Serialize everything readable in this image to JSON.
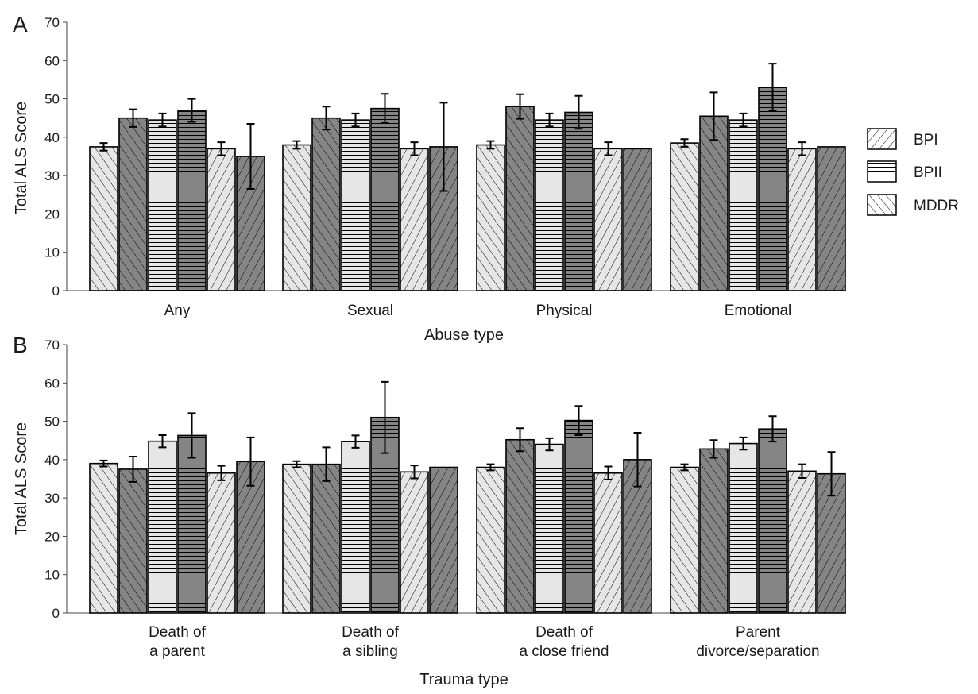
{
  "legend": [
    {
      "label": "BPI",
      "pattern": "pat-bpi"
    },
    {
      "label": "BPII",
      "pattern": "pat-bpii"
    },
    {
      "label": "MDDR",
      "pattern": "pat-mddr"
    }
  ],
  "colors": {
    "light": "#e6e6e6",
    "dark": "#858585",
    "stroke": "#000000"
  },
  "chart_data": [
    {
      "type": "bar",
      "panel_label": "A",
      "xlabel": "Abuse type",
      "ylabel": "Total ALS Score",
      "ylim": [
        0,
        70
      ],
      "yticks": [
        "0",
        "10",
        "20",
        "30",
        "40",
        "50",
        "60",
        "70"
      ],
      "legend_position": "right",
      "categories": [
        [
          "Any"
        ],
        [
          "Sexual"
        ],
        [
          "Physical"
        ],
        [
          "Emotional"
        ]
      ],
      "bars_per_category": [
        [
          {
            "group": "BPI",
            "shade": "light",
            "value": 37.5,
            "err": 1
          },
          {
            "group": "BPI",
            "shade": "dark",
            "value": 45,
            "err": 2.3
          },
          {
            "group": "BPII",
            "shade": "light",
            "value": 44.5,
            "err": 1.7
          },
          {
            "group": "BPII",
            "shade": "dark",
            "value": 47,
            "err": 3
          },
          {
            "group": "MDDR",
            "shade": "light",
            "value": 37,
            "err": 1.7
          },
          {
            "group": "MDDR",
            "shade": "dark",
            "value": 35,
            "err": 8.5
          }
        ],
        [
          {
            "group": "BPI",
            "shade": "light",
            "value": 38,
            "err": 1
          },
          {
            "group": "BPI",
            "shade": "dark",
            "value": 45,
            "err": 3
          },
          {
            "group": "BPII",
            "shade": "light",
            "value": 44.5,
            "err": 1.7
          },
          {
            "group": "BPII",
            "shade": "dark",
            "value": 47.5,
            "err": 3.8
          },
          {
            "group": "MDDR",
            "shade": "light",
            "value": 37,
            "err": 1.7
          },
          {
            "group": "MDDR",
            "shade": "dark",
            "value": 37.5,
            "err": 11.5
          }
        ],
        [
          {
            "group": "BPI",
            "shade": "light",
            "value": 38,
            "err": 1
          },
          {
            "group": "BPI",
            "shade": "dark",
            "value": 48,
            "err": 3.2
          },
          {
            "group": "BPII",
            "shade": "light",
            "value": 44.5,
            "err": 1.7
          },
          {
            "group": "BPII",
            "shade": "dark",
            "value": 46.5,
            "err": 4.3
          },
          {
            "group": "MDDR",
            "shade": "light",
            "value": 37,
            "err": 1.7
          },
          {
            "group": "MDDR",
            "shade": "dark",
            "value": 37,
            "err": 0
          }
        ],
        [
          {
            "group": "BPI",
            "shade": "light",
            "value": 38.5,
            "err": 1
          },
          {
            "group": "BPI",
            "shade": "dark",
            "value": 45.5,
            "err": 6.2
          },
          {
            "group": "BPII",
            "shade": "light",
            "value": 44.5,
            "err": 1.7
          },
          {
            "group": "BPII",
            "shade": "dark",
            "value": 53,
            "err": 6.2
          },
          {
            "group": "MDDR",
            "shade": "light",
            "value": 37,
            "err": 1.7
          },
          {
            "group": "MDDR",
            "shade": "dark",
            "value": 37.5,
            "err": 0
          }
        ]
      ]
    },
    {
      "type": "bar",
      "panel_label": "B",
      "xlabel": "Trauma type",
      "ylabel": "Total ALS Score",
      "ylim": [
        0,
        70
      ],
      "yticks": [
        "0",
        "10",
        "20",
        "30",
        "40",
        "50",
        "60",
        "70"
      ],
      "categories": [
        [
          "Death of",
          "a parent"
        ],
        [
          "Death of",
          "a sibling"
        ],
        [
          "Death of",
          "a close friend"
        ],
        [
          "Parent",
          "divorce/separation"
        ]
      ],
      "bars_per_category": [
        [
          {
            "group": "BPI",
            "shade": "light",
            "value": 39,
            "err": 0.8
          },
          {
            "group": "BPI",
            "shade": "dark",
            "value": 37.5,
            "err": 3.3
          },
          {
            "group": "BPII",
            "shade": "light",
            "value": 44.8,
            "err": 1.6
          },
          {
            "group": "BPII",
            "shade": "dark",
            "value": 46.3,
            "err": 5.8
          },
          {
            "group": "MDDR",
            "shade": "light",
            "value": 36.5,
            "err": 1.9
          },
          {
            "group": "MDDR",
            "shade": "dark",
            "value": 39.5,
            "err": 6.3
          }
        ],
        [
          {
            "group": "BPI",
            "shade": "light",
            "value": 38.8,
            "err": 0.8
          },
          {
            "group": "BPI",
            "shade": "dark",
            "value": 38.8,
            "err": 4.4
          },
          {
            "group": "BPII",
            "shade": "light",
            "value": 44.7,
            "err": 1.6
          },
          {
            "group": "BPII",
            "shade": "dark",
            "value": 51,
            "err": 9.3
          },
          {
            "group": "MDDR",
            "shade": "light",
            "value": 36.8,
            "err": 1.7
          },
          {
            "group": "MDDR",
            "shade": "dark",
            "value": 38,
            "err": 0
          }
        ],
        [
          {
            "group": "BPI",
            "shade": "light",
            "value": 38,
            "err": 0.8
          },
          {
            "group": "BPI",
            "shade": "dark",
            "value": 45.2,
            "err": 3
          },
          {
            "group": "BPII",
            "shade": "light",
            "value": 44,
            "err": 1.6
          },
          {
            "group": "BPII",
            "shade": "dark",
            "value": 50.2,
            "err": 3.8
          },
          {
            "group": "MDDR",
            "shade": "light",
            "value": 36.5,
            "err": 1.7
          },
          {
            "group": "MDDR",
            "shade": "dark",
            "value": 40,
            "err": 7
          }
        ],
        [
          {
            "group": "BPI",
            "shade": "light",
            "value": 38,
            "err": 0.8
          },
          {
            "group": "BPI",
            "shade": "dark",
            "value": 42.8,
            "err": 2.3
          },
          {
            "group": "BPII",
            "shade": "light",
            "value": 44.2,
            "err": 1.6
          },
          {
            "group": "BPII",
            "shade": "dark",
            "value": 48,
            "err": 3.3
          },
          {
            "group": "MDDR",
            "shade": "light",
            "value": 37,
            "err": 1.8
          },
          {
            "group": "MDDR",
            "shade": "dark",
            "value": 36.3,
            "err": 5.7
          }
        ]
      ]
    }
  ]
}
